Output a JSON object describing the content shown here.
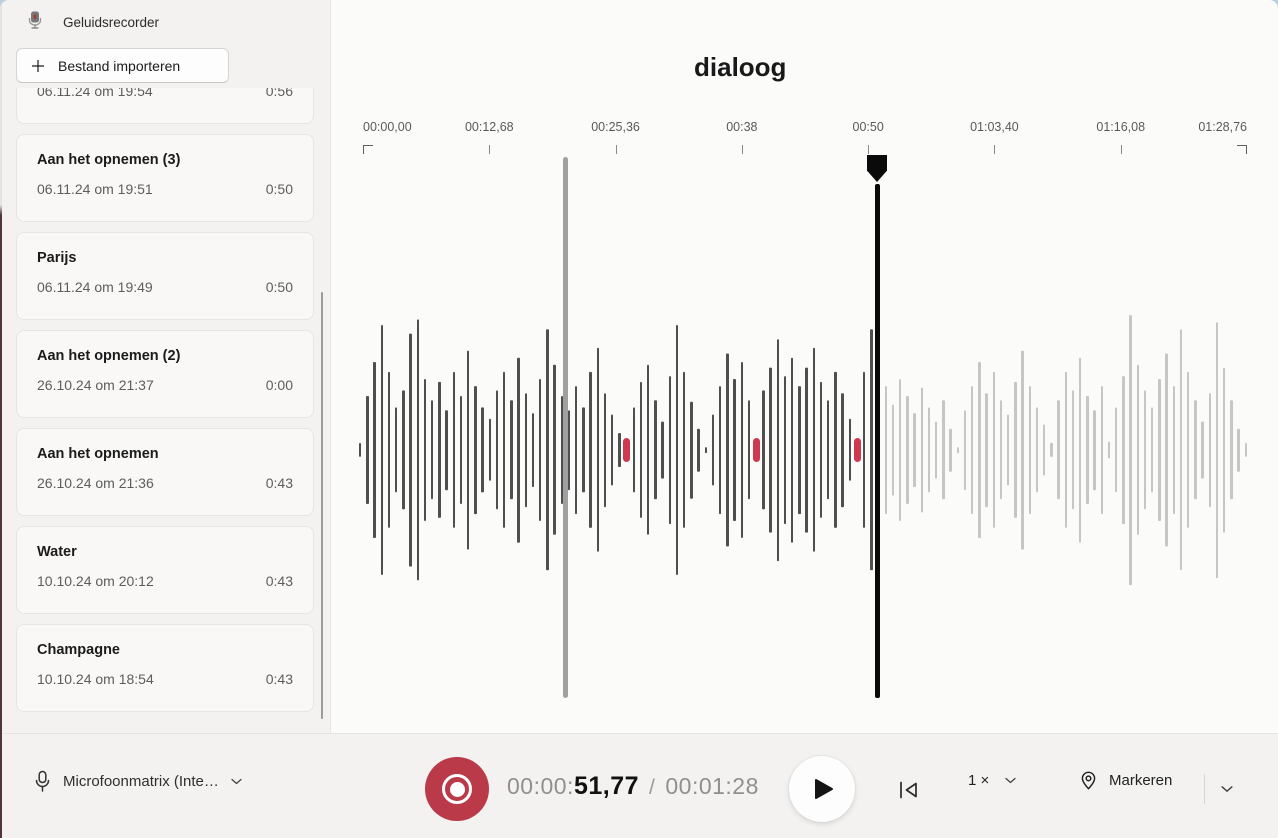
{
  "window": {
    "app_title": "Geluidsrecorder"
  },
  "sidebar": {
    "import_button_label": "Bestand importeren",
    "recordings": [
      {
        "title": "",
        "date": "06.11.24 om 19:54",
        "duration": "0:56",
        "partial": true
      },
      {
        "title": "Aan het opnemen (3)",
        "date": "06.11.24 om 19:51",
        "duration": "0:50"
      },
      {
        "title": "Parijs",
        "date": "06.11.24 om 19:49",
        "duration": "0:50"
      },
      {
        "title": "Aan het opnemen (2)",
        "date": "26.10.24 om 21:37",
        "duration": "0:00"
      },
      {
        "title": "Aan het opnemen",
        "date": "26.10.24 om 21:36",
        "duration": "0:43"
      },
      {
        "title": "Water",
        "date": "10.10.24 om 20:12",
        "duration": "0:43"
      },
      {
        "title": "Champagne",
        "date": "10.10.24 om 18:54",
        "duration": "0:43"
      }
    ]
  },
  "main": {
    "recording_title": "dialoog",
    "ruler_labels": [
      "00:00,00",
      "00:12,68",
      "00:25,36",
      "00:38",
      "00:50",
      "01:03,40",
      "01:16,08",
      "01:28,76"
    ],
    "waveform": {
      "amplitudes": [
        0.05,
        0.38,
        0.62,
        0.88,
        0.55,
        0.3,
        0.42,
        0.82,
        0.92,
        0.5,
        0.35,
        0.48,
        0.28,
        0.55,
        0.38,
        0.7,
        0.45,
        0.3,
        0.22,
        0.42,
        0.55,
        0.35,
        0.65,
        0.4,
        0.26,
        0.5,
        0.85,
        0.6,
        0.38,
        0.28,
        0.45,
        0.3,
        0.55,
        0.72,
        0.4,
        0.25,
        0.12,
        0.02,
        0.3,
        0.48,
        0.6,
        0.35,
        0.2,
        0.52,
        0.88,
        0.55,
        0.34,
        0.15,
        0.02,
        0.25,
        0.45,
        0.68,
        0.5,
        0.62,
        0.35,
        0.02,
        0.42,
        0.58,
        0.78,
        0.52,
        0.65,
        0.45,
        0.58,
        0.72,
        0.48,
        0.35,
        0.55,
        0.4,
        0.22,
        0.02,
        0.55,
        0.85,
        0.6,
        0.45,
        0.32,
        0.5,
        0.38,
        0.26,
        0.44,
        0.3,
        0.2,
        0.35,
        0.15,
        0.02,
        0.28,
        0.45,
        0.62,
        0.4,
        0.55,
        0.35,
        0.25,
        0.48,
        0.7,
        0.45,
        0.3,
        0.18,
        0.05,
        0.35,
        0.55,
        0.42,
        0.65,
        0.38,
        0.28,
        0.45,
        0.06,
        0.3,
        0.52,
        0.95,
        0.6,
        0.42,
        0.3,
        0.5,
        0.68,
        0.45,
        0.85,
        0.55,
        0.35,
        0.2,
        0.4,
        0.9,
        0.58,
        0.35,
        0.15,
        0.05
      ],
      "marker_indices": [
        37,
        55,
        69
      ],
      "played_last_index": 71,
      "color_played": "#4f4f4f",
      "color_unplayed": "#c6c6c6",
      "color_marker": "#ce3950"
    }
  },
  "transport": {
    "mic_label": "Microfoonmatrix (Inte…",
    "elapsed_prefix": "00:00:",
    "elapsed_emphasis": "51,77",
    "separator": "/",
    "total_time": "00:01:28",
    "speed_label": "1 ×",
    "marker_label": "Markeren"
  },
  "colors": {
    "record_red": "#ba3a4a",
    "marker_red": "#ce3950"
  }
}
